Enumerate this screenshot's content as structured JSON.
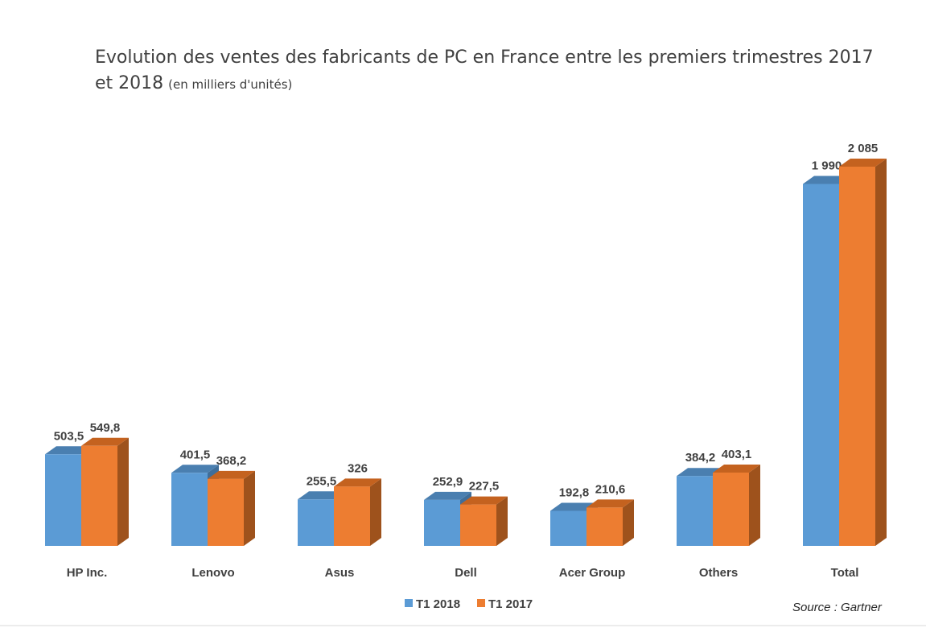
{
  "chart_data": {
    "type": "bar",
    "title_line1": "Evolution des ventes des fabricants de PC en France entre les premiers trimestres 2017",
    "title_line2": "et 2018",
    "subtitle": "(en milliers d'unités)",
    "categories": [
      "HP Inc.",
      "Lenovo",
      "Asus",
      "Dell",
      "Acer Group",
      "Others",
      "Total"
    ],
    "series": [
      {
        "name": "T1 2018",
        "values": [
          503.5,
          401.5,
          255.5,
          252.9,
          192.8,
          384.2,
          1990
        ],
        "labels": [
          "503,5",
          "401,5",
          "255,5",
          "252,9",
          "192,8",
          "384,2",
          "1 990"
        ],
        "color": "#5B9BD5",
        "top_color": "#4A7FB0",
        "side_color": "#3F6E9A"
      },
      {
        "name": "T1 2017",
        "values": [
          549.8,
          368.2,
          326,
          227.5,
          210.6,
          403.1,
          2085
        ],
        "labels": [
          "549,8",
          "368,2",
          "326",
          "227,5",
          "210,6",
          "403,1",
          "2 085"
        ],
        "color": "#ED7D31",
        "top_color": "#C4621F",
        "side_color": "#9E521C"
      }
    ],
    "ylim": [
      0,
      2085
    ],
    "bar_style": "3d-column",
    "legend_position": "bottom",
    "grid": false
  },
  "source": "Source : Gartner"
}
